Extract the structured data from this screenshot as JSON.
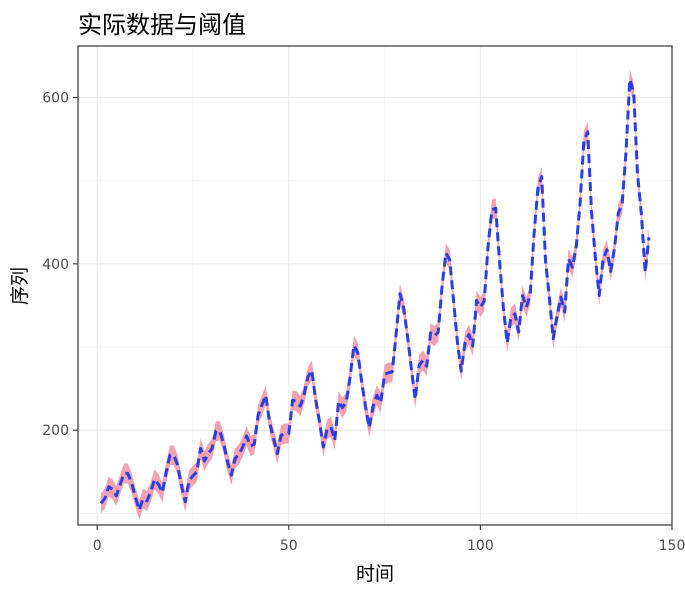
{
  "chart_data": {
    "type": "line",
    "title": "实际数据与阈值",
    "xlabel": "时间",
    "ylabel": "序列",
    "xlim": [
      -5,
      150
    ],
    "ylim": [
      86,
      662
    ],
    "x_ticks": [
      0,
      50,
      100,
      150
    ],
    "y_ticks": [
      200,
      400,
      600
    ],
    "grid": true,
    "legend": "none",
    "colors": {
      "band": "#f2a3b3",
      "line": "#2b3fe0",
      "grid": "#ebebeb",
      "frame": "#333333"
    },
    "band_halfwidth": 12,
    "series": [
      {
        "style": "dashed",
        "x": [
          1,
          2,
          3,
          4,
          5,
          6,
          7,
          8,
          9,
          10,
          11,
          12,
          13,
          14,
          15,
          16,
          17,
          18,
          19,
          20,
          21,
          22,
          23,
          24,
          25,
          26,
          27,
          28,
          29,
          30,
          31,
          32,
          33,
          34,
          35,
          36,
          37,
          38,
          39,
          40,
          41,
          42,
          43,
          44,
          45,
          46,
          47,
          48,
          49,
          50,
          51,
          52,
          53,
          54,
          55,
          56,
          57,
          58,
          59,
          60,
          61,
          62,
          63,
          64,
          65,
          66,
          67,
          68,
          69,
          70,
          71,
          72,
          73,
          74,
          75,
          76,
          77,
          78,
          79,
          80,
          81,
          82,
          83,
          84,
          85,
          86,
          87,
          88,
          89,
          90,
          91,
          92,
          93,
          94,
          95,
          96,
          97,
          98,
          99,
          100,
          101,
          102,
          103,
          104,
          105,
          106,
          107,
          108,
          109,
          110,
          111,
          112,
          113,
          114,
          115,
          116,
          117,
          118,
          119,
          120,
          121,
          122,
          123,
          124,
          125,
          126,
          127,
          128,
          129,
          130,
          131,
          132,
          133,
          134,
          135,
          136,
          137,
          138,
          139,
          140,
          141,
          142,
          143,
          144
        ],
        "values": [
          112,
          118,
          132,
          129,
          121,
          135,
          148,
          148,
          136,
          119,
          104,
          118,
          115,
          126,
          141,
          135,
          125,
          149,
          170,
          170,
          158,
          133,
          114,
          140,
          145,
          150,
          178,
          163,
          172,
          178,
          199,
          199,
          184,
          162,
          146,
          166,
          171,
          180,
          193,
          181,
          183,
          218,
          230,
          242,
          209,
          191,
          172,
          194,
          196,
          196,
          236,
          235,
          229,
          243,
          264,
          272,
          237,
          211,
          180,
          201,
          204,
          188,
          235,
          227,
          234,
          264,
          302,
          293,
          259,
          229,
          203,
          229,
          242,
          233,
          267,
          269,
          270,
          315,
          364,
          347,
          312,
          274,
          237,
          278,
          284,
          277,
          317,
          313,
          318,
          374,
          413,
          405,
          355,
          306,
          271,
          306,
          315,
          301,
          356,
          348,
          355,
          422,
          465,
          467,
          404,
          347,
          305,
          336,
          340,
          318,
          362,
          348,
          363,
          435,
          491,
          505,
          404,
          359,
          310,
          337,
          360,
          342,
          406,
          396,
          420,
          472,
          548,
          559,
          463,
          407,
          362,
          405,
          417,
          391,
          419,
          461,
          472,
          535,
          622,
          606,
          508,
          461,
          390,
          432
        ]
      }
    ]
  }
}
